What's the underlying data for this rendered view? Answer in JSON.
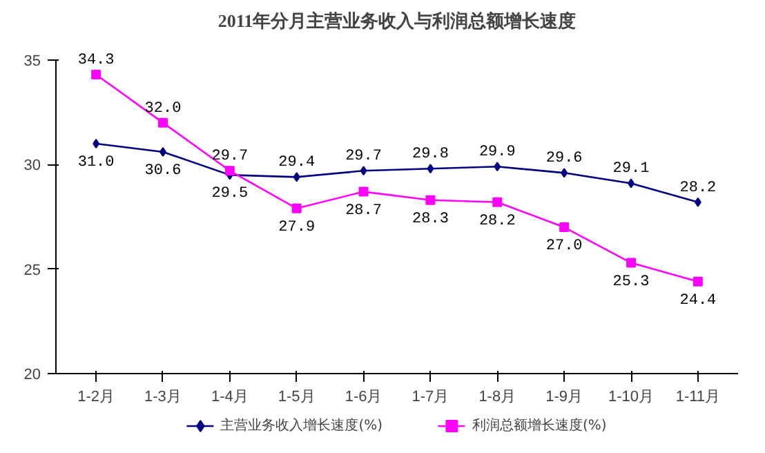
{
  "chart_data": {
    "type": "line",
    "title": "2011年分月主营业务收入与利润总额增长速度",
    "categories": [
      "1-2月",
      "1-3月",
      "1-4月",
      "1-5月",
      "1-6月",
      "1-7月",
      "1-8月",
      "1-9月",
      "1-10月",
      "1-11月"
    ],
    "series": [
      {
        "name": "主营业务收入增长速度(%)",
        "color": "#000080",
        "marker": "diamond",
        "values": [
          31.0,
          30.6,
          29.5,
          29.4,
          29.7,
          29.8,
          29.9,
          29.6,
          29.1,
          28.2
        ],
        "value_labels": [
          "31.0",
          "30.6",
          "29.5",
          "29.4",
          "29.7",
          "29.8",
          "29.9",
          "29.6",
          "29.1",
          "28.2"
        ]
      },
      {
        "name": "利润总额增长速度(%)",
        "color": "#ff00ff",
        "marker": "square",
        "values": [
          34.3,
          32.0,
          29.7,
          27.9,
          28.7,
          28.3,
          28.2,
          27.0,
          25.3,
          24.4
        ],
        "value_labels": [
          "34.3",
          "32.0",
          "29.7",
          "27.9",
          "28.7",
          "28.3",
          "28.2",
          "27.0",
          "25.3",
          "24.4"
        ]
      }
    ],
    "ylim": [
      20,
      35
    ],
    "yticks": [
      20,
      25,
      30,
      35
    ],
    "grid": false,
    "legend": "bottom",
    "data_labels": true
  }
}
